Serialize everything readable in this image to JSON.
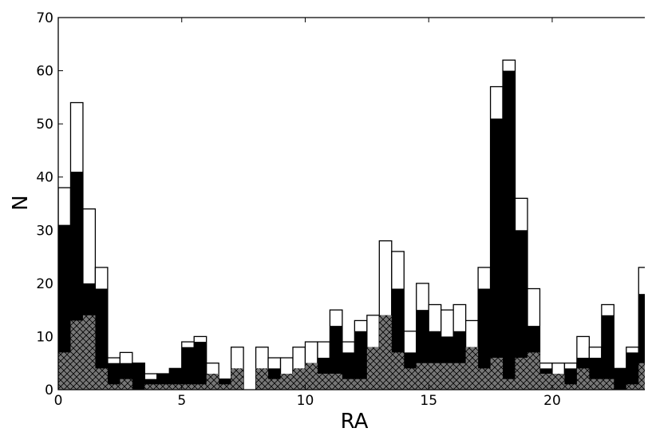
{
  "chart_data": {
    "type": "bar",
    "title": "",
    "xlabel": "RA",
    "ylabel": "N",
    "xlim": [
      0,
      24
    ],
    "ylim": [
      0,
      70
    ],
    "bin_width": 0.5,
    "xticks": [
      0,
      5,
      10,
      15,
      20
    ],
    "yticks": [
      0,
      10,
      20,
      30,
      40,
      50,
      60,
      70
    ],
    "grid": false,
    "legend": "none",
    "bin_starts": [
      0,
      0.5,
      1,
      1.5,
      2,
      2.5,
      3,
      3.5,
      4,
      4.5,
      5,
      5.5,
      6,
      6.5,
      7,
      7.5,
      8,
      8.5,
      9,
      9.5,
      10,
      10.5,
      11,
      11.5,
      12,
      12.5,
      13,
      13.5,
      14,
      14.5,
      15,
      15.5,
      16,
      16.5,
      17,
      17.5,
      18,
      18.5,
      19,
      19.5,
      20,
      20.5,
      21,
      21.5,
      22,
      22.5,
      23,
      23.5
    ],
    "series": [
      {
        "style": "outline",
        "color": "#ffffff",
        "values": [
          38,
          54,
          34,
          23,
          6,
          7,
          5,
          3,
          3,
          4,
          9,
          10,
          5,
          2,
          8,
          0,
          8,
          6,
          6,
          8,
          9,
          9,
          15,
          9,
          13,
          14,
          28,
          26,
          11,
          20,
          16,
          15,
          16,
          13,
          23,
          57,
          62,
          36,
          19,
          5,
          5,
          5,
          10,
          8,
          16,
          4,
          8,
          23
        ]
      },
      {
        "style": "solid",
        "color": "#000000",
        "values": [
          31,
          41,
          20,
          19,
          5,
          5,
          5,
          2,
          3,
          4,
          8,
          9,
          3,
          2,
          4,
          0,
          4,
          4,
          3,
          4,
          5,
          6,
          12,
          7,
          11,
          8,
          14,
          19,
          7,
          15,
          11,
          10,
          11,
          8,
          19,
          51,
          60,
          30,
          12,
          4,
          3,
          4,
          6,
          6,
          14,
          4,
          7,
          18
        ]
      },
      {
        "style": "hatched",
        "color": "#777777",
        "values": [
          7,
          13,
          14,
          4,
          1,
          2,
          0,
          1,
          1,
          1,
          1,
          1,
          3,
          1,
          4,
          0,
          4,
          2,
          3,
          4,
          5,
          3,
          3,
          2,
          2,
          8,
          14,
          7,
          4,
          5,
          5,
          5,
          5,
          8,
          4,
          6,
          2,
          6,
          7,
          3,
          3,
          1,
          4,
          2,
          2,
          0,
          1,
          5
        ]
      }
    ]
  }
}
